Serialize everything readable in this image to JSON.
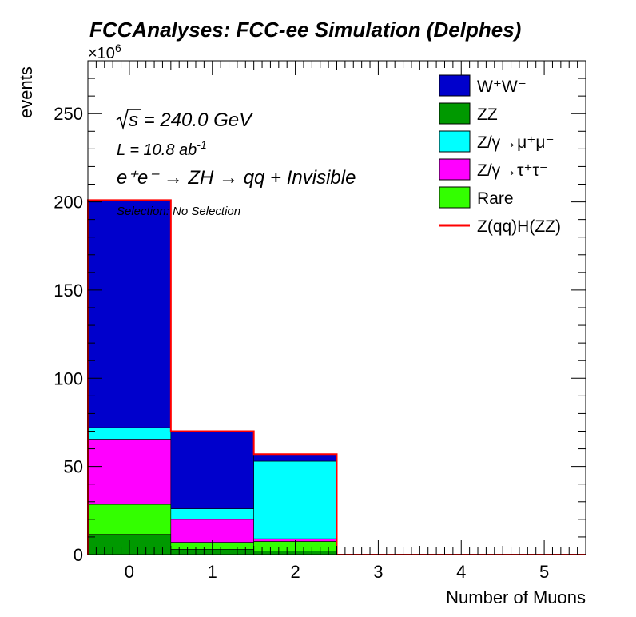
{
  "chart_data": {
    "type": "bar",
    "stacked": true,
    "title": "FCCAnalyses: FCC-ee Simulation (Delphes)",
    "xlabel": "Number of Muons",
    "ylabel": "events",
    "y_multiplier": "×10",
    "y_multiplier_exp": "6",
    "x_range": [
      -0.5,
      5.5
    ],
    "ylim": [
      0,
      280
    ],
    "x_ticks": [
      "0",
      "1",
      "2",
      "3",
      "4",
      "5"
    ],
    "y_ticks": [
      "0",
      "50",
      "100",
      "150",
      "200",
      "250"
    ],
    "categories": [
      0,
      1,
      2,
      3,
      4,
      5
    ],
    "series": [
      {
        "name": "ZZ",
        "color": "#009900",
        "values": [
          11.5,
          3.0,
          2.0,
          0,
          0,
          0
        ]
      },
      {
        "name": "Rare",
        "color": "#33ff00",
        "values": [
          17.0,
          4.0,
          5.5,
          0,
          0,
          0
        ]
      },
      {
        "name": "Z/γ→τ⁺τ⁻",
        "color": "#ff00ff",
        "values": [
          37.0,
          13.0,
          1.5,
          0,
          0,
          0
        ]
      },
      {
        "name": "Z/γ→μ⁺μ⁻",
        "color": "#00ffff",
        "values": [
          6.5,
          6.0,
          44.0,
          0,
          0,
          0
        ]
      },
      {
        "name": "W⁺W⁻",
        "color": "#0000cc",
        "values": [
          129.0,
          44.0,
          4.0,
          0,
          0,
          0
        ]
      }
    ],
    "signal": {
      "name": "Z(qq)H(ZZ)",
      "color": "#ff0000",
      "values": [
        201.0,
        70.0,
        57.0,
        0,
        0,
        0
      ]
    },
    "legend_placement": "top-right",
    "annotations": {
      "sqrt_s": "s = 240.0 GeV",
      "lumi": "L = 10.8 ab",
      "lumi_exp": "-1",
      "process": "e⁺e⁻ → ZH → qq + Invisible",
      "selection": "Selection: No Selection"
    }
  }
}
